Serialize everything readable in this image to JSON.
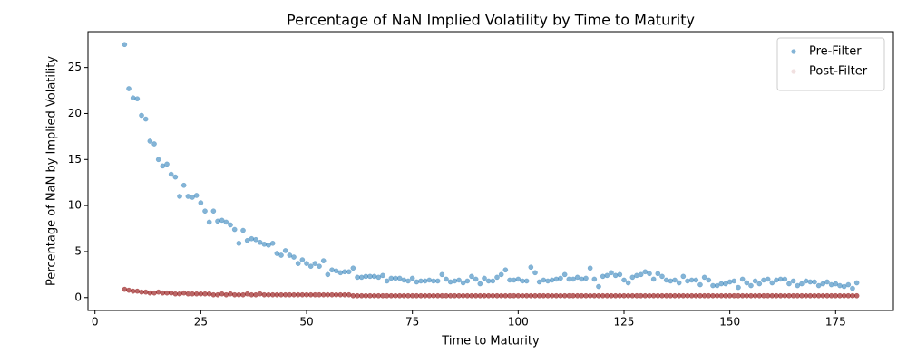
{
  "chart_data": {
    "type": "scatter",
    "title": "Percentage of NaN Implied Volatility by Time to Maturity",
    "x_label": "Time to Maturity",
    "y_label": "Percentage of NaN by Implied Volatility",
    "xlim": [
      -1.65,
      188.65
    ],
    "ylim": [
      -1.4,
      28.9
    ],
    "xticks": [
      0,
      25,
      50,
      75,
      100,
      125,
      150,
      175
    ],
    "yticks": [
      0,
      5,
      10,
      15,
      20,
      25
    ],
    "legend": "upper right",
    "x": [
      7,
      8,
      9,
      10,
      11,
      12,
      13,
      14,
      15,
      16,
      17,
      18,
      19,
      20,
      21,
      22,
      23,
      24,
      25,
      26,
      27,
      28,
      29,
      30,
      31,
      32,
      33,
      34,
      35,
      36,
      37,
      38,
      39,
      40,
      41,
      42,
      43,
      44,
      45,
      46,
      47,
      48,
      49,
      50,
      51,
      52,
      53,
      54,
      55,
      56,
      57,
      58,
      59,
      60,
      61,
      62,
      63,
      64,
      65,
      66,
      67,
      68,
      69,
      70,
      71,
      72,
      73,
      74,
      75,
      76,
      77,
      78,
      79,
      80,
      81,
      82,
      83,
      84,
      85,
      86,
      87,
      88,
      89,
      90,
      91,
      92,
      93,
      94,
      95,
      96,
      97,
      98,
      99,
      100,
      101,
      102,
      103,
      104,
      105,
      106,
      107,
      108,
      109,
      110,
      111,
      112,
      113,
      114,
      115,
      116,
      117,
      118,
      119,
      120,
      121,
      122,
      123,
      124,
      125,
      126,
      127,
      128,
      129,
      130,
      131,
      132,
      133,
      134,
      135,
      136,
      137,
      138,
      139,
      140,
      141,
      142,
      143,
      144,
      145,
      146,
      147,
      148,
      149,
      150,
      151,
      152,
      153,
      154,
      155,
      156,
      157,
      158,
      159,
      160,
      161,
      162,
      163,
      164,
      165,
      166,
      167,
      168,
      169,
      170,
      171,
      172,
      173,
      174,
      175,
      176,
      177,
      178,
      179,
      180
    ],
    "series": [
      {
        "name": "Pre-Filter",
        "color": "#1f77b4",
        "values": [
          27.5,
          22.7,
          21.7,
          21.6,
          19.8,
          19.4,
          17.0,
          16.7,
          15.0,
          14.3,
          14.5,
          13.4,
          13.1,
          11.0,
          12.2,
          11.0,
          10.9,
          11.1,
          10.3,
          9.4,
          8.2,
          9.4,
          8.3,
          8.4,
          8.2,
          7.9,
          7.4,
          5.9,
          7.3,
          6.2,
          6.4,
          6.3,
          6.0,
          5.8,
          5.7,
          5.9,
          4.8,
          4.6,
          5.1,
          4.6,
          4.4,
          3.7,
          4.1,
          3.7,
          3.4,
          3.7,
          3.4,
          4.0,
          2.5,
          3.0,
          2.9,
          2.7,
          2.8,
          2.8,
          3.2,
          2.2,
          2.2,
          2.3,
          2.3,
          2.3,
          2.2,
          2.4,
          1.8,
          2.1,
          2.1,
          2.1,
          1.9,
          1.8,
          2.1,
          1.7,
          1.8,
          1.8,
          1.9,
          1.8,
          1.8,
          2.5,
          2.0,
          1.7,
          1.8,
          1.9,
          1.6,
          1.8,
          2.3,
          2.0,
          1.5,
          2.1,
          1.8,
          1.8,
          2.2,
          2.5,
          3.0,
          1.9,
          1.9,
          2.0,
          1.8,
          1.8,
          3.3,
          2.7,
          1.7,
          1.9,
          1.8,
          1.9,
          2.0,
          2.1,
          2.5,
          2.0,
          2.0,
          2.2,
          2.0,
          2.1,
          3.2,
          2.0,
          1.2,
          2.3,
          2.4,
          2.7,
          2.4,
          2.5,
          1.9,
          1.6,
          2.2,
          2.4,
          2.5,
          2.8,
          2.6,
          2.0,
          2.6,
          2.3,
          1.9,
          1.8,
          1.9,
          1.6,
          2.3,
          1.8,
          1.9,
          1.9,
          1.4,
          2.2,
          1.9,
          1.3,
          1.3,
          1.5,
          1.5,
          1.7,
          1.8,
          1.1,
          2.0,
          1.6,
          1.3,
          1.8,
          1.5,
          1.9,
          2.0,
          1.6,
          1.9,
          2.0,
          2.0,
          1.5,
          1.8,
          1.3,
          1.5,
          1.8,
          1.7,
          1.7,
          1.3,
          1.5,
          1.7,
          1.4,
          1.5,
          1.3,
          1.2,
          1.4,
          1.0,
          1.6
        ]
      },
      {
        "name": "Post-Filter",
        "color": "#8b0000",
        "values": [
          0.9,
          0.8,
          0.7,
          0.7,
          0.6,
          0.6,
          0.5,
          0.5,
          0.6,
          0.5,
          0.5,
          0.5,
          0.4,
          0.4,
          0.5,
          0.4,
          0.4,
          0.4,
          0.4,
          0.4,
          0.4,
          0.3,
          0.3,
          0.4,
          0.3,
          0.4,
          0.3,
          0.3,
          0.3,
          0.4,
          0.3,
          0.3,
          0.4,
          0.3,
          0.3,
          0.3,
          0.3,
          0.3,
          0.3,
          0.3,
          0.3,
          0.3,
          0.3,
          0.3,
          0.3,
          0.3,
          0.3,
          0.3,
          0.3,
          0.3,
          0.3,
          0.3,
          0.3,
          0.3,
          0.2,
          0.2,
          0.2,
          0.2,
          0.2,
          0.2,
          0.2,
          0.2,
          0.2,
          0.2,
          0.2,
          0.2,
          0.2,
          0.2,
          0.2,
          0.2,
          0.2,
          0.2,
          0.2,
          0.2,
          0.2,
          0.2,
          0.2,
          0.2,
          0.2,
          0.2,
          0.2,
          0.2,
          0.2,
          0.2,
          0.2,
          0.2,
          0.2,
          0.2,
          0.2,
          0.2,
          0.2,
          0.2,
          0.2,
          0.2,
          0.2,
          0.2,
          0.2,
          0.2,
          0.2,
          0.2,
          0.2,
          0.2,
          0.2,
          0.2,
          0.2,
          0.2,
          0.2,
          0.2,
          0.2,
          0.2,
          0.2,
          0.2,
          0.2,
          0.2,
          0.2,
          0.2,
          0.2,
          0.2,
          0.2,
          0.2,
          0.2,
          0.2,
          0.2,
          0.2,
          0.2,
          0.2,
          0.2,
          0.2,
          0.2,
          0.2,
          0.2,
          0.2,
          0.2,
          0.2,
          0.2,
          0.2,
          0.2,
          0.2,
          0.2,
          0.2,
          0.2,
          0.2,
          0.2,
          0.2,
          0.2,
          0.2,
          0.2,
          0.2,
          0.2,
          0.2,
          0.2,
          0.2,
          0.2,
          0.2,
          0.2,
          0.2,
          0.2,
          0.2,
          0.2,
          0.2,
          0.2,
          0.2,
          0.2,
          0.2,
          0.2,
          0.2,
          0.2,
          0.2,
          0.2,
          0.2,
          0.2,
          0.2,
          0.2,
          0.2
        ]
      }
    ]
  }
}
